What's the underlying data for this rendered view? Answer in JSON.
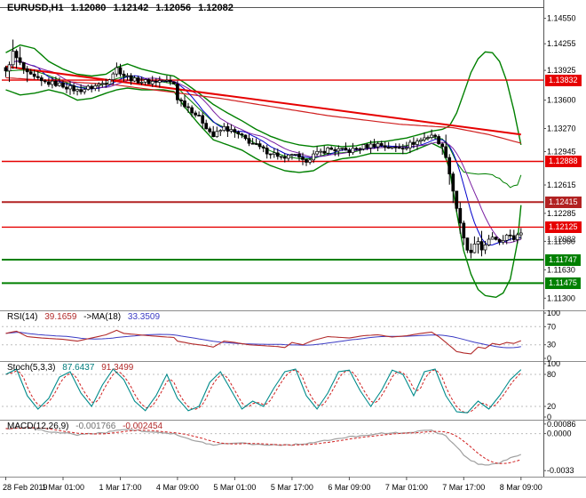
{
  "chart_data": {
    "type": "candlestick",
    "symbol_timeframe": "EURUSD,H1",
    "ohlc": {
      "open": "1.12080",
      "high": "1.12142",
      "low": "1.12056",
      "close": "1.12082"
    },
    "bars": 145,
    "bar_step": 4.03,
    "price_axis": {
      "range": [
        1.112,
        1.1468
      ],
      "labels": [
        "1.14550",
        "1.14255",
        "1.13925",
        "1.13600",
        "1.13270",
        "1.12945",
        "1.12615",
        "1.12285",
        "1.11960",
        "1.11630",
        "1.11300"
      ]
    },
    "time_axis": {
      "labels": [
        "28 Feb 2019",
        "1 Mar 01:00",
        "1 Mar 17:00",
        "4 Mar 09:00",
        "5 Mar 01:00",
        "5 Mar 17:00",
        "6 Mar 09:00",
        "7 Mar 01:00",
        "7 Mar 17:00",
        "8 Mar 09:00"
      ],
      "bar_positions": [
        0,
        16,
        32,
        48,
        64,
        80,
        96,
        112,
        128,
        144
      ]
    },
    "hlines": [
      {
        "price": 1.13832,
        "label": "1.13832",
        "color": "#e60000",
        "width": 1.4
      },
      {
        "price": 1.12888,
        "label": "1.12888",
        "color": "#e60000",
        "width": 1.4
      },
      {
        "price": 1.12415,
        "label": "1.12415",
        "color": "#b22222",
        "width": 2
      },
      {
        "price": 1.12125,
        "label": "1.12125",
        "color": "#e60000",
        "width": 1.4
      },
      {
        "price": 1.11747,
        "label": "1.11747",
        "color": "#008000",
        "width": 2
      },
      {
        "price": 1.11475,
        "label": "1.11475",
        "color": "#008000",
        "width": 2
      }
    ],
    "current_price": {
      "value": "1.12082",
      "price": 1.12082
    },
    "trendlines": [
      {
        "from": [
          0,
          1.1399
        ],
        "to": [
          144,
          1.132
        ],
        "color": "#e60000",
        "width": 2
      }
    ],
    "close_anchors": [
      [
        0,
        1.1392
      ],
      [
        2,
        1.1415
      ],
      [
        4,
        1.1402
      ],
      [
        6,
        1.139
      ],
      [
        10,
        1.1381
      ],
      [
        14,
        1.1379
      ],
      [
        16,
        1.1377
      ],
      [
        20,
        1.1371
      ],
      [
        24,
        1.1375
      ],
      [
        28,
        1.1381
      ],
      [
        31,
        1.1397
      ],
      [
        33,
        1.1389
      ],
      [
        36,
        1.1383
      ],
      [
        40,
        1.1381
      ],
      [
        44,
        1.1383
      ],
      [
        47,
        1.1379
      ],
      [
        48,
        1.1362
      ],
      [
        52,
        1.1348
      ],
      [
        55,
        1.1335
      ],
      [
        58,
        1.1318
      ],
      [
        61,
        1.1328
      ],
      [
        64,
        1.1322
      ],
      [
        68,
        1.1312
      ],
      [
        72,
        1.1302
      ],
      [
        76,
        1.1296
      ],
      [
        78,
        1.129
      ],
      [
        80,
        1.1298
      ],
      [
        83,
        1.1288
      ],
      [
        86,
        1.1296
      ],
      [
        90,
        1.1303
      ],
      [
        96,
        1.1301
      ],
      [
        100,
        1.1306
      ],
      [
        104,
        1.1309
      ],
      [
        108,
        1.1304
      ],
      [
        112,
        1.1307
      ],
      [
        116,
        1.1314
      ],
      [
        119,
        1.132
      ],
      [
        121,
        1.1312
      ],
      [
        123,
        1.1296
      ],
      [
        124,
        1.1275
      ],
      [
        125,
        1.1255
      ],
      [
        126,
        1.1235
      ],
      [
        127,
        1.1215
      ],
      [
        128,
        1.1198
      ],
      [
        129,
        1.1186
      ],
      [
        130,
        1.1181
      ],
      [
        131,
        1.119
      ],
      [
        132,
        1.1196
      ],
      [
        133,
        1.1188
      ],
      [
        134,
        1.119
      ],
      [
        136,
        1.1202
      ],
      [
        138,
        1.1197
      ],
      [
        140,
        1.1203
      ],
      [
        142,
        1.1199
      ],
      [
        144,
        1.1208
      ]
    ],
    "boll_upper_anchors": [
      [
        0,
        1.1415
      ],
      [
        4,
        1.1424
      ],
      [
        8,
        1.142
      ],
      [
        12,
        1.1405
      ],
      [
        16,
        1.1396
      ],
      [
        20,
        1.139
      ],
      [
        24,
        1.1388
      ],
      [
        28,
        1.139
      ],
      [
        31,
        1.1398
      ],
      [
        34,
        1.1402
      ],
      [
        38,
        1.1396
      ],
      [
        44,
        1.139
      ],
      [
        47,
        1.1388
      ],
      [
        50,
        1.138
      ],
      [
        54,
        1.1368
      ],
      [
        58,
        1.1355
      ],
      [
        62,
        1.1345
      ],
      [
        66,
        1.1336
      ],
      [
        70,
        1.1326
      ],
      [
        74,
        1.1318
      ],
      [
        78,
        1.1312
      ],
      [
        82,
        1.1308
      ],
      [
        86,
        1.1306
      ],
      [
        90,
        1.1308
      ],
      [
        94,
        1.1306
      ],
      [
        98,
        1.1307
      ],
      [
        102,
        1.1311
      ],
      [
        106,
        1.1312
      ],
      [
        112,
        1.1316
      ],
      [
        119,
        1.1324
      ],
      [
        122,
        1.1326
      ],
      [
        124,
        1.133
      ],
      [
        126,
        1.1345
      ],
      [
        128,
        1.1368
      ],
      [
        130,
        1.1392
      ],
      [
        132,
        1.1408
      ],
      [
        134,
        1.1416
      ],
      [
        136,
        1.1415
      ],
      [
        138,
        1.1405
      ],
      [
        140,
        1.1382
      ],
      [
        142,
        1.1348
      ],
      [
        144,
        1.1308
      ]
    ],
    "boll_lower_anchors": [
      [
        0,
        1.1372
      ],
      [
        4,
        1.1366
      ],
      [
        8,
        1.1368
      ],
      [
        12,
        1.1372
      ],
      [
        16,
        1.1368
      ],
      [
        20,
        1.136
      ],
      [
        24,
        1.1362
      ],
      [
        28,
        1.1368
      ],
      [
        31,
        1.1372
      ],
      [
        34,
        1.1374
      ],
      [
        38,
        1.1372
      ],
      [
        44,
        1.1372
      ],
      [
        47,
        1.137
      ],
      [
        50,
        1.1352
      ],
      [
        54,
        1.1332
      ],
      [
        58,
        1.1314
      ],
      [
        62,
        1.1308
      ],
      [
        66,
        1.1302
      ],
      [
        70,
        1.1292
      ],
      [
        74,
        1.1284
      ],
      [
        78,
        1.1278
      ],
      [
        82,
        1.1276
      ],
      [
        86,
        1.1278
      ],
      [
        90,
        1.1288
      ],
      [
        94,
        1.1292
      ],
      [
        98,
        1.1294
      ],
      [
        102,
        1.1298
      ],
      [
        106,
        1.1298
      ],
      [
        112,
        1.1298
      ],
      [
        119,
        1.131
      ],
      [
        122,
        1.1304
      ],
      [
        124,
        1.128
      ],
      [
        126,
        1.123
      ],
      [
        128,
        1.1185
      ],
      [
        130,
        1.1158
      ],
      [
        132,
        1.114
      ],
      [
        134,
        1.1133
      ],
      [
        137,
        1.1131
      ],
      [
        139,
        1.1136
      ],
      [
        141,
        1.1152
      ],
      [
        143,
        1.1195
      ],
      [
        144,
        1.1238
      ]
    ],
    "ma_red_anchors": [
      [
        0,
        1.1386
      ],
      [
        30,
        1.1378
      ],
      [
        60,
        1.1362
      ],
      [
        90,
        1.1342
      ],
      [
        110,
        1.1332
      ],
      [
        125,
        1.1328
      ],
      [
        135,
        1.132
      ],
      [
        144,
        1.131
      ]
    ],
    "indicators": {
      "rsi": {
        "label": "RSI(14)",
        "value": "39.1659",
        "ma_label": "->MA(18)",
        "ma_value": "33.3509",
        "axis": [
          "100",
          "70",
          "30",
          "0"
        ],
        "levels": [
          70,
          30
        ],
        "range": [
          0,
          100
        ],
        "anchors": [
          [
            0,
            55
          ],
          [
            3,
            60
          ],
          [
            6,
            48
          ],
          [
            10,
            45
          ],
          [
            16,
            42
          ],
          [
            20,
            38
          ],
          [
            24,
            45
          ],
          [
            28,
            52
          ],
          [
            31,
            62
          ],
          [
            33,
            55
          ],
          [
            40,
            50
          ],
          [
            47,
            46
          ],
          [
            48,
            38
          ],
          [
            52,
            32
          ],
          [
            56,
            28
          ],
          [
            58,
            25
          ],
          [
            61,
            38
          ],
          [
            64,
            35
          ],
          [
            68,
            30
          ],
          [
            72,
            28
          ],
          [
            76,
            26
          ],
          [
            78,
            24
          ],
          [
            80,
            35
          ],
          [
            83,
            30
          ],
          [
            86,
            40
          ],
          [
            90,
            48
          ],
          [
            96,
            45
          ],
          [
            100,
            50
          ],
          [
            104,
            52
          ],
          [
            108,
            47
          ],
          [
            112,
            50
          ],
          [
            116,
            55
          ],
          [
            119,
            58
          ],
          [
            121,
            48
          ],
          [
            123,
            35
          ],
          [
            125,
            22
          ],
          [
            126,
            15
          ],
          [
            128,
            12
          ],
          [
            130,
            10
          ],
          [
            132,
            25
          ],
          [
            134,
            22
          ],
          [
            136,
            33
          ],
          [
            138,
            30
          ],
          [
            140,
            35
          ],
          [
            142,
            33
          ],
          [
            144,
            39
          ]
        ]
      },
      "stoch": {
        "label": "Stoch(5,3,3)",
        "value": "87.6437",
        "signal_value": "91.3499",
        "axis": [
          "100",
          "80",
          "20",
          "0"
        ],
        "levels": [
          80,
          20
        ],
        "range": [
          0,
          100
        ],
        "anchors": [
          [
            0,
            80
          ],
          [
            3,
            90
          ],
          [
            6,
            40
          ],
          [
            9,
            15
          ],
          [
            12,
            35
          ],
          [
            15,
            75
          ],
          [
            18,
            85
          ],
          [
            21,
            45
          ],
          [
            24,
            20
          ],
          [
            27,
            60
          ],
          [
            30,
            90
          ],
          [
            33,
            70
          ],
          [
            36,
            30
          ],
          [
            39,
            12
          ],
          [
            42,
            40
          ],
          [
            45,
            80
          ],
          [
            48,
            35
          ],
          [
            51,
            12
          ],
          [
            54,
            20
          ],
          [
            57,
            65
          ],
          [
            60,
            85
          ],
          [
            63,
            50
          ],
          [
            66,
            15
          ],
          [
            69,
            30
          ],
          [
            72,
            20
          ],
          [
            75,
            55
          ],
          [
            78,
            85
          ],
          [
            81,
            90
          ],
          [
            84,
            40
          ],
          [
            87,
            15
          ],
          [
            90,
            45
          ],
          [
            93,
            85
          ],
          [
            96,
            88
          ],
          [
            99,
            50
          ],
          [
            102,
            20
          ],
          [
            105,
            50
          ],
          [
            108,
            88
          ],
          [
            111,
            80
          ],
          [
            114,
            40
          ],
          [
            117,
            85
          ],
          [
            120,
            90
          ],
          [
            123,
            40
          ],
          [
            126,
            10
          ],
          [
            129,
            8
          ],
          [
            132,
            30
          ],
          [
            135,
            15
          ],
          [
            138,
            40
          ],
          [
            141,
            70
          ],
          [
            144,
            89
          ]
        ]
      },
      "macd": {
        "label": "MACD(12,26,9)",
        "value": "-0.001766",
        "signal_value": "-0.002454",
        "axis": [
          "0.00086",
          "0.0000",
          "-0.0033"
        ],
        "levels": [
          0
        ],
        "range": [
          -0.0036,
          0.001
        ],
        "anchors": [
          [
            0,
            0.0004
          ],
          [
            6,
            0.0006
          ],
          [
            12,
            0.0002
          ],
          [
            20,
            -0.0001
          ],
          [
            28,
            0.0001
          ],
          [
            33,
            0.0004
          ],
          [
            40,
            0.0002
          ],
          [
            47,
            0.0
          ],
          [
            52,
            -0.0006
          ],
          [
            58,
            -0.001
          ],
          [
            64,
            -0.0008
          ],
          [
            72,
            -0.001
          ],
          [
            80,
            -0.001
          ],
          [
            86,
            -0.0008
          ],
          [
            96,
            -0.0003
          ],
          [
            104,
            0.0
          ],
          [
            112,
            0.0001
          ],
          [
            119,
            0.0003
          ],
          [
            123,
            -0.0002
          ],
          [
            126,
            -0.0012
          ],
          [
            129,
            -0.0022
          ],
          [
            132,
            -0.0027
          ],
          [
            135,
            -0.0028
          ],
          [
            138,
            -0.0026
          ],
          [
            141,
            -0.0022
          ],
          [
            144,
            -0.0018
          ]
        ]
      }
    },
    "colors": {
      "background": "#ffffff",
      "bollinger": "#008000",
      "ma_blue": "#0000cc",
      "ma_purple": "#7a1fa2",
      "ma_red": "#d02020",
      "candle_up": "#ffffff",
      "candle_down": "#000000",
      "candle_outline": "#000000",
      "rsi_line": "#b22a2a",
      "rsi_ma": "#3b3bc4",
      "stoch_k": "#008b8b",
      "stoch_d": "#d02020",
      "macd_main": "#a0a0a0",
      "macd_signal": "#d02020",
      "level_dotted": "#bdbdbd",
      "separator": "#8c8c8c",
      "axis_line": "#555555",
      "axis_text": "#000000",
      "badge_text": "#ffffff"
    }
  }
}
